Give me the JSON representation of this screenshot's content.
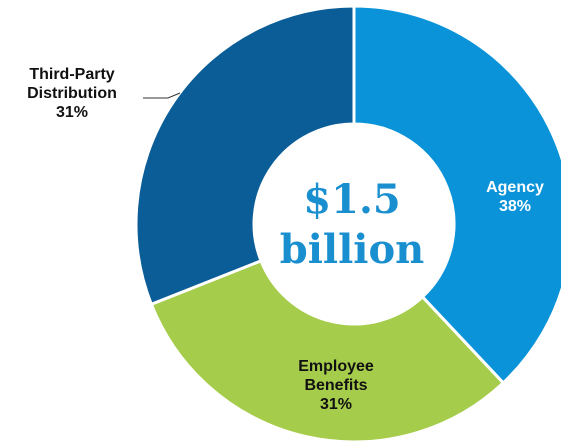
{
  "chart_data": {
    "type": "pie",
    "variant": "donut",
    "center_label": [
      "$1.5",
      "billion"
    ],
    "slices": [
      {
        "label": [
          "Agency",
          "38%"
        ],
        "value": 38,
        "color": "#0a93d8",
        "label_color": "#ffffff"
      },
      {
        "label": [
          "Employee",
          "Benefits",
          "31%"
        ],
        "value": 31,
        "color": "#a6cc4c",
        "label_color": "#111111"
      },
      {
        "label": [
          "Third-Party",
          "Distribution",
          "31%"
        ],
        "value": 31,
        "color": "#0a5d96",
        "label_color": "#111111"
      }
    ],
    "colors": {
      "center_text": "#1a8fd0",
      "separator": "#ffffff",
      "leader_line": "#333333"
    }
  }
}
